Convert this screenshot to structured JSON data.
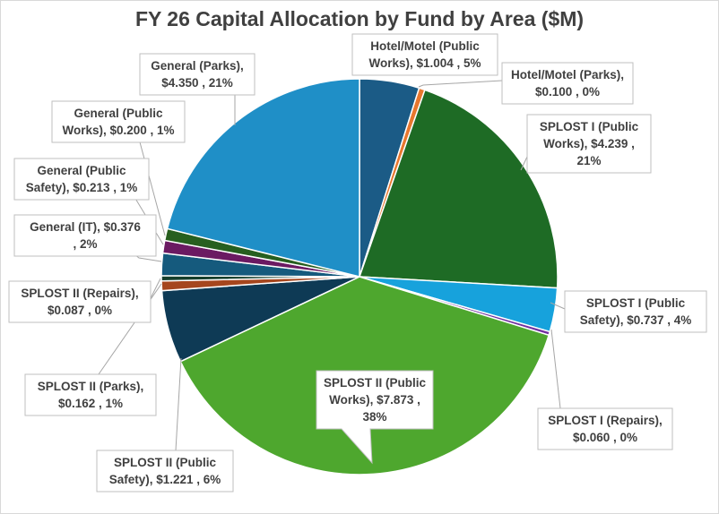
{
  "chart_data": {
    "type": "pie",
    "title": "FY 26 Capital Allocation by Fund by Area ($M)",
    "unit": "$M",
    "slices": [
      {
        "name": "Hotel/Motel (Public Works)",
        "value": 1.004,
        "percent": "5%",
        "color": "#1b5b86",
        "label": [
          "Hotel/Motel  (Public",
          "Works),  $1.004 , 5%"
        ]
      },
      {
        "name": "Hotel/Motel (Parks)",
        "value": 0.1,
        "percent": "0%",
        "color": "#e8772e",
        "label": [
          "Hotel/Motel (Parks),",
          "$0.100 , 0%"
        ]
      },
      {
        "name": "SPLOST I (Public Works)",
        "value": 4.239,
        "percent": "21%",
        "color": "#1e6b25",
        "label": [
          "SPLOST I (Public",
          "Works),  $4.239 ,",
          "21%"
        ]
      },
      {
        "name": "SPLOST I (Public Safety)",
        "value": 0.737,
        "percent": "4%",
        "color": "#17a2dc",
        "label": [
          "SPLOST I (Public",
          "Safety),  $0.737 , 4%"
        ]
      },
      {
        "name": "SPLOST I (Repairs)",
        "value": 0.06,
        "percent": "0%",
        "color": "#7030a0",
        "label": [
          "SPLOST I (Repairs),",
          "$0.060 , 0%"
        ]
      },
      {
        "name": "SPLOST II (Public Works)",
        "value": 7.873,
        "percent": "38%",
        "color": "#4ea72e",
        "label": [
          "SPLOST II (Public",
          "Works),  $7.873 ,",
          "38%"
        ]
      },
      {
        "name": "SPLOST II (Public Safety)",
        "value": 1.221,
        "percent": "6%",
        "color": "#0e3a55",
        "label": [
          "SPLOST II (Public",
          "Safety),  $1.221 , 6%"
        ]
      },
      {
        "name": "SPLOST II (Parks)",
        "value": 0.162,
        "percent": "1%",
        "color": "#a5461e",
        "label": [
          "SPLOST II (Parks),",
          "$0.162 , 1%"
        ]
      },
      {
        "name": "SPLOST II (Repairs)",
        "value": 0.087,
        "percent": "0%",
        "color": "#163f2c",
        "label": [
          "SPLOST II (Repairs),",
          "$0.087 , 0%"
        ]
      },
      {
        "name": "General (IT)",
        "value": 0.376,
        "percent": "2%",
        "color": "#155a7d",
        "label": [
          "General (IT),  $0.376",
          ", 2%"
        ]
      },
      {
        "name": "General (Public Safety)",
        "value": 0.213,
        "percent": "1%",
        "color": "#6b1a62",
        "label": [
          "General (Public",
          "Safety),  $0.213 , 1%"
        ]
      },
      {
        "name": "General (Public Works)",
        "value": 0.2,
        "percent": "1%",
        "color": "#275f1f",
        "label": [
          "General (Public",
          "Works),  $0.200 , 1%"
        ]
      },
      {
        "name": "General (Parks)",
        "value": 4.35,
        "percent": "21%",
        "color": "#1f8fc7",
        "label": [
          "General (Parks),",
          "$4.350 , 21%"
        ]
      }
    ]
  }
}
